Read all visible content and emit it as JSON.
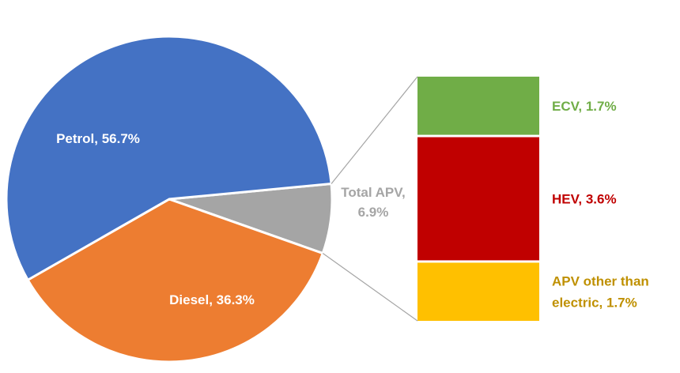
{
  "chart_data": {
    "type": "pie",
    "title": "",
    "series": [
      {
        "name": "",
        "categories": [
          "Petrol",
          "Diesel",
          "Total APV"
        ],
        "values": [
          56.7,
          36.3,
          6.9
        ],
        "labels": [
          "Petrol, 56.7%",
          "Diesel, 36.3%",
          "Total APV, 6.9%"
        ],
        "colors": [
          "#4472C4",
          "#ED7D31",
          "#A5A5A5"
        ]
      }
    ],
    "breakdown": {
      "of": "Total APV",
      "type": "stacked-bar",
      "categories": [
        "ECV",
        "HEV",
        "APV other than electric"
      ],
      "values": [
        1.7,
        3.6,
        1.7
      ],
      "labels": [
        "ECV, 1.7%",
        "HEV, 3.6%",
        "APV other than electric, 1.7%"
      ],
      "colors": [
        "#70AD47",
        "#C00000",
        "#FFC000"
      ],
      "label_colors": [
        "#70AD47",
        "#C00000",
        "#BF9000"
      ]
    },
    "label_colors": {
      "Petrol": "#FFFFFF",
      "Diesel": "#FFFFFF",
      "Total APV": "#A5A5A5"
    }
  }
}
